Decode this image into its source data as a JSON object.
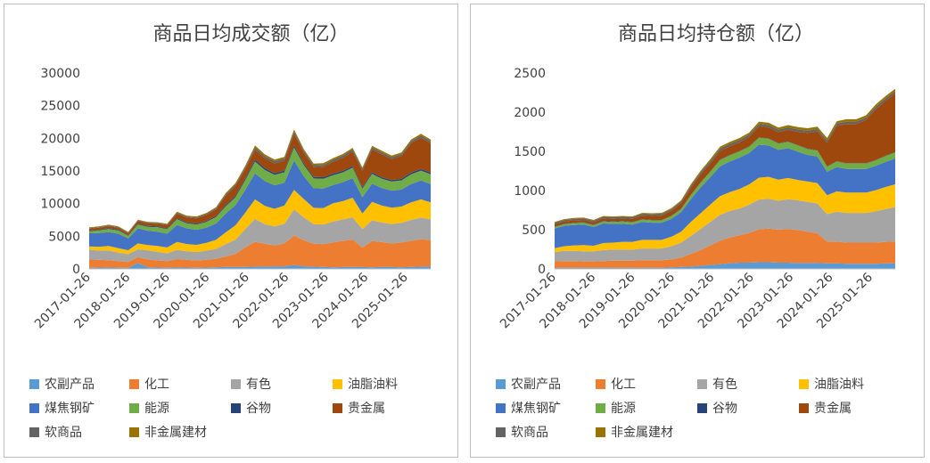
{
  "chart_data": [
    {
      "type": "area",
      "stacked": true,
      "title": "商品日均成交额（亿）",
      "ylim": [
        0,
        30000
      ],
      "y_ticks": [
        "0",
        "5000",
        "10000",
        "15000",
        "20000",
        "25000",
        "30000"
      ],
      "x_ticks": [
        "2017-01-26",
        "2018-01-26",
        "2019-01-26",
        "2020-01-26",
        "2021-01-26",
        "2022-01-26",
        "2023-01-26",
        "2024-01-26",
        "2025-01-26"
      ],
      "x": [
        "2017-01",
        "2017-04",
        "2017-07",
        "2017-10",
        "2018-01",
        "2018-04",
        "2018-07",
        "2018-10",
        "2019-01",
        "2019-04",
        "2019-07",
        "2019-10",
        "2020-01",
        "2020-04",
        "2020-07",
        "2020-10",
        "2021-01",
        "2021-04",
        "2021-07",
        "2021-10",
        "2022-01",
        "2022-04",
        "2022-07",
        "2022-10",
        "2023-01",
        "2023-04",
        "2023-07",
        "2023-10",
        "2024-01",
        "2024-04",
        "2024-07",
        "2024-10",
        "2025-01",
        "2025-04",
        "2025-07",
        "2025-10"
      ],
      "series": [
        {
          "name": "农副产品",
          "color": "#5b9bd5",
          "values": [
            150,
            200,
            220,
            180,
            160,
            900,
            250,
            200,
            180,
            220,
            200,
            180,
            200,
            250,
            300,
            280,
            300,
            350,
            350,
            400,
            400,
            600,
            400,
            350,
            300,
            250,
            280,
            300,
            280,
            250,
            300,
            280,
            250,
            300,
            350,
            400
          ]
        },
        {
          "name": "化工",
          "color": "#ed7d31",
          "values": [
            1300,
            1200,
            1100,
            1000,
            900,
            900,
            1200,
            1100,
            1000,
            1300,
            1200,
            1100,
            1200,
            1300,
            1600,
            2000,
            3000,
            3800,
            3500,
            3200,
            3500,
            4500,
            4000,
            3500,
            3500,
            3800,
            4000,
            4200,
            3000,
            4000,
            3800,
            3600,
            3800,
            4000,
            4200,
            4000
          ]
        },
        {
          "name": "有色",
          "color": "#a5a5a5",
          "values": [
            1500,
            1400,
            1500,
            1300,
            1200,
            1200,
            1400,
            1300,
            1200,
            1400,
            1300,
            1300,
            1400,
            1500,
            1900,
            2200,
            2800,
            3500,
            3000,
            2900,
            3000,
            4000,
            3500,
            3000,
            3000,
            3200,
            3300,
            3400,
            2800,
            3200,
            3000,
            3000,
            3000,
            3200,
            3300,
            3200
          ]
        },
        {
          "name": "油脂油料",
          "color": "#ffc000",
          "values": [
            500,
            600,
            700,
            700,
            600,
            900,
            800,
            900,
            900,
            1200,
            1100,
            1100,
            1200,
            1400,
            1800,
            2200,
            2500,
            3000,
            2800,
            2700,
            2800,
            3000,
            2800,
            2500,
            2500,
            2800,
            2800,
            3000,
            2400,
            2800,
            2600,
            2500,
            2500,
            2700,
            2800,
            2600
          ]
        },
        {
          "name": "煤焦钢矿",
          "color": "#4472c4",
          "values": [
            2000,
            2100,
            2100,
            2200,
            1800,
            2300,
            2200,
            2200,
            2100,
            2600,
            2400,
            2300,
            2300,
            2500,
            2900,
            3100,
            3500,
            4000,
            3800,
            3600,
            3500,
            4500,
            3500,
            3000,
            3000,
            2800,
            2900,
            3000,
            2500,
            2800,
            2700,
            2600,
            2600,
            2800,
            2900,
            2800
          ]
        },
        {
          "name": "能源",
          "color": "#70ad47",
          "values": [
            300,
            400,
            500,
            500,
            400,
            600,
            600,
            700,
            700,
            900,
            800,
            800,
            900,
            1000,
            1100,
            1200,
            1500,
            1800,
            1700,
            1600,
            1600,
            2000,
            1700,
            1500,
            1500,
            1500,
            1500,
            1600,
            1300,
            1500,
            1400,
            1400,
            1400,
            1500,
            1500,
            1500
          ]
        },
        {
          "name": "谷物",
          "color": "#264478",
          "values": [
            100,
            100,
            120,
            120,
            100,
            120,
            120,
            120,
            120,
            150,
            150,
            150,
            150,
            160,
            200,
            220,
            250,
            300,
            280,
            260,
            260,
            300,
            260,
            240,
            240,
            240,
            240,
            250,
            220,
            240,
            230,
            230,
            230,
            240,
            250,
            240
          ]
        },
        {
          "name": "贵金属",
          "color": "#9e480e",
          "values": [
            300,
            300,
            300,
            300,
            300,
            400,
            400,
            400,
            500,
            700,
            700,
            800,
            900,
            1000,
            1400,
            1500,
            1400,
            1500,
            1500,
            1500,
            1500,
            1800,
            1600,
            1500,
            1600,
            1800,
            2000,
            2200,
            2500,
            3500,
            3500,
            3200,
            3500,
            4500,
            4800,
            4500
          ]
        },
        {
          "name": "软商品",
          "color": "#636363",
          "values": [
            100,
            100,
            120,
            120,
            100,
            120,
            120,
            120,
            120,
            150,
            150,
            150,
            160,
            180,
            220,
            250,
            300,
            350,
            330,
            320,
            320,
            350,
            320,
            300,
            300,
            320,
            320,
            330,
            300,
            320,
            310,
            300,
            300,
            320,
            330,
            320
          ]
        },
        {
          "name": "非金属建材",
          "color": "#997300",
          "values": [
            100,
            100,
            100,
            100,
            100,
            100,
            100,
            100,
            100,
            150,
            150,
            150,
            150,
            150,
            200,
            200,
            250,
            300,
            280,
            260,
            260,
            300,
            260,
            240,
            240,
            250,
            250,
            260,
            230,
            250,
            240,
            240,
            240,
            250,
            260,
            250
          ]
        }
      ]
    },
    {
      "type": "area",
      "stacked": true,
      "title": "商品日均持仓额（亿）",
      "ylim": [
        0,
        2500
      ],
      "y_ticks": [
        "0",
        "500",
        "1000",
        "1500",
        "2000",
        "2500"
      ],
      "x_ticks": [
        "2017-01-26",
        "2018-01-26",
        "2019-01-26",
        "2020-01-26",
        "2021-01-26",
        "2022-01-26",
        "2023-01-26",
        "2024-01-26",
        "2025-01-26"
      ],
      "x": [
        "2017-01",
        "2017-04",
        "2017-07",
        "2017-10",
        "2018-01",
        "2018-04",
        "2018-07",
        "2018-10",
        "2019-01",
        "2019-04",
        "2019-07",
        "2019-10",
        "2020-01",
        "2020-04",
        "2020-07",
        "2020-10",
        "2021-01",
        "2021-04",
        "2021-07",
        "2021-10",
        "2022-01",
        "2022-04",
        "2022-07",
        "2022-10",
        "2023-01",
        "2023-04",
        "2023-07",
        "2023-10",
        "2024-01",
        "2024-04",
        "2024-07",
        "2024-10",
        "2025-01",
        "2025-04",
        "2025-07",
        "2025-10"
      ],
      "series": [
        {
          "name": "农副产品",
          "color": "#5b9bd5",
          "values": [
            15,
            15,
            15,
            15,
            15,
            15,
            15,
            15,
            15,
            15,
            15,
            15,
            20,
            25,
            30,
            40,
            50,
            60,
            70,
            80,
            80,
            85,
            85,
            80,
            80,
            75,
            75,
            75,
            70,
            70,
            65,
            65,
            65,
            65,
            70,
            70
          ]
        },
        {
          "name": "化工",
          "color": "#ed7d31",
          "values": [
            80,
            85,
            85,
            80,
            80,
            85,
            90,
            90,
            90,
            95,
            95,
            95,
            100,
            120,
            160,
            200,
            250,
            300,
            330,
            350,
            380,
            420,
            430,
            420,
            430,
            420,
            400,
            380,
            280,
            280,
            270,
            270,
            270,
            270,
            275,
            280
          ]
        },
        {
          "name": "有色",
          "color": "#a5a5a5",
          "values": [
            120,
            130,
            130,
            130,
            130,
            140,
            140,
            140,
            140,
            150,
            150,
            150,
            170,
            190,
            230,
            270,
            300,
            330,
            340,
            340,
            360,
            380,
            380,
            370,
            380,
            380,
            380,
            380,
            350,
            380,
            380,
            380,
            380,
            400,
            420,
            440
          ]
        },
        {
          "name": "油脂油料",
          "color": "#ffc000",
          "values": [
            50,
            60,
            70,
            80,
            70,
            90,
            90,
            100,
            100,
            110,
            110,
            110,
            120,
            140,
            180,
            200,
            220,
            240,
            240,
            250,
            260,
            280,
            280,
            270,
            270,
            260,
            260,
            260,
            240,
            260,
            260,
            260,
            260,
            270,
            280,
            290
          ]
        },
        {
          "name": "煤焦钢矿",
          "color": "#4472c4",
          "values": [
            250,
            260,
            260,
            260,
            240,
            250,
            240,
            230,
            220,
            230,
            220,
            220,
            230,
            250,
            290,
            330,
            350,
            380,
            390,
            400,
            400,
            420,
            400,
            380,
            380,
            360,
            340,
            340,
            300,
            310,
            300,
            300,
            300,
            310,
            320,
            330
          ]
        },
        {
          "name": "能源",
          "color": "#70ad47",
          "values": [
            20,
            20,
            25,
            25,
            25,
            25,
            25,
            30,
            30,
            30,
            30,
            30,
            35,
            40,
            50,
            60,
            70,
            80,
            80,
            80,
            80,
            90,
            85,
            80,
            80,
            80,
            75,
            75,
            65,
            70,
            70,
            70,
            70,
            70,
            75,
            75
          ]
        },
        {
          "name": "谷物",
          "color": "#264478",
          "values": [
            5,
            5,
            5,
            5,
            5,
            5,
            5,
            5,
            5,
            5,
            5,
            5,
            5,
            5,
            5,
            5,
            5,
            5,
            5,
            5,
            5,
            5,
            5,
            5,
            5,
            5,
            5,
            5,
            5,
            5,
            5,
            5,
            5,
            5,
            5,
            5
          ]
        },
        {
          "name": "贵金属",
          "color": "#9e480e",
          "values": [
            30,
            30,
            30,
            30,
            30,
            35,
            35,
            35,
            40,
            45,
            50,
            55,
            60,
            70,
            90,
            100,
            100,
            110,
            110,
            110,
            120,
            140,
            140,
            140,
            150,
            170,
            200,
            240,
            300,
            450,
            500,
            500,
            550,
            650,
            700,
            750
          ]
        },
        {
          "name": "软商品",
          "color": "#636363",
          "values": [
            20,
            20,
            20,
            20,
            20,
            20,
            20,
            20,
            20,
            20,
            20,
            20,
            20,
            20,
            25,
            25,
            30,
            30,
            30,
            30,
            30,
            30,
            30,
            30,
            30,
            30,
            30,
            30,
            30,
            30,
            30,
            30,
            30,
            30,
            30,
            30
          ]
        },
        {
          "name": "非金属建材",
          "color": "#997300",
          "values": [
            10,
            10,
            10,
            10,
            10,
            10,
            10,
            10,
            10,
            15,
            15,
            15,
            15,
            15,
            20,
            20,
            25,
            25,
            25,
            25,
            25,
            30,
            30,
            30,
            30,
            30,
            30,
            30,
            30,
            30,
            30,
            30,
            30,
            30,
            30,
            30
          ]
        }
      ]
    }
  ]
}
